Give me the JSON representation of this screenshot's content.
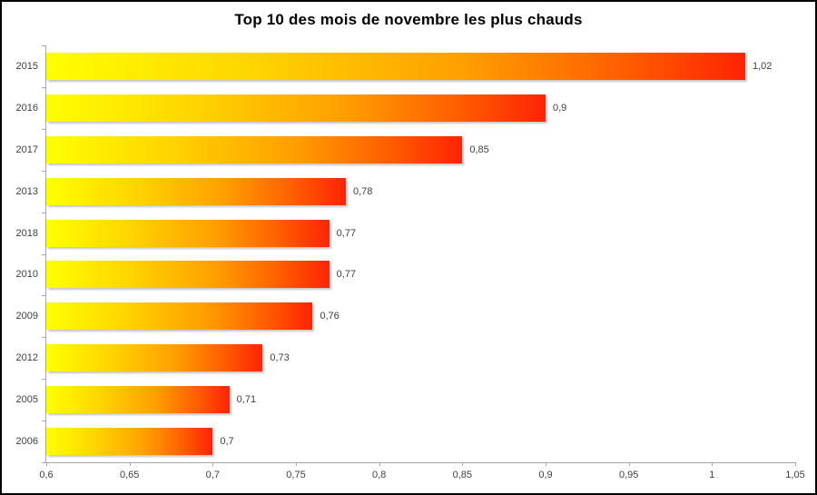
{
  "chart_data": {
    "type": "bar",
    "orientation": "horizontal",
    "title": "Top 10 des mois de novembre les plus chauds",
    "categories": [
      "2015",
      "2016",
      "2017",
      "2013",
      "2018",
      "2010",
      "2009",
      "2012",
      "2005",
      "2006"
    ],
    "values": [
      1.02,
      0.9,
      0.85,
      0.78,
      0.77,
      0.77,
      0.76,
      0.73,
      0.71,
      0.7
    ],
    "value_labels": [
      "1,02",
      "0,9",
      "0,85",
      "0,78",
      "0,77",
      "0,77",
      "0,76",
      "0,73",
      "0,71",
      "0,7"
    ],
    "xlabel": "",
    "ylabel": "",
    "xlim": [
      0.6,
      1.05
    ],
    "x_ticks": [
      0.6,
      0.65,
      0.7,
      0.75,
      0.8,
      0.85,
      0.9,
      0.95,
      1,
      1.05
    ],
    "x_tick_labels": [
      "0,6",
      "0,65",
      "0,7",
      "0,75",
      "0,8",
      "0,85",
      "0,9",
      "0,95",
      "1",
      "1,05"
    ],
    "grid": false,
    "legend": false,
    "colors": {
      "bar_gradient_stops": [
        "#FFFF00 0%",
        "#FFD400 30%",
        "#FF9E00 60%",
        "#FF5C00 83%",
        "#FF2305 100%"
      ],
      "axis_line": "#A6A6A6",
      "tick": "#A6A6A6",
      "label_text": "#404040",
      "title_text": "#000000",
      "background": "#FFFFFF",
      "frame_border": "#000000"
    }
  }
}
